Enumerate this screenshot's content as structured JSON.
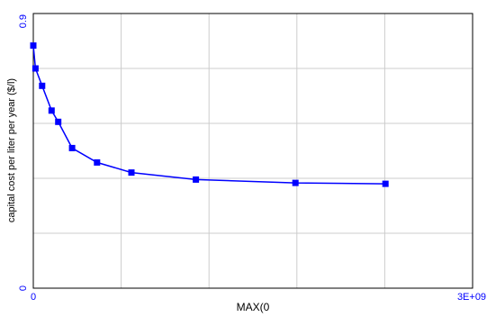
{
  "chart_data": {
    "type": "line",
    "title": "",
    "xlabel": "MAX(0",
    "ylabel": "capital cost per liter per year ($/l)",
    "xlim": [
      0,
      3000000000
    ],
    "ylim": [
      0,
      0.9
    ],
    "x_tick_labels": [
      "0",
      "3E+09"
    ],
    "y_tick_labels": [
      "0",
      "0.9"
    ],
    "grid": true,
    "series": [
      {
        "x": [
          0,
          15000000,
          60000000,
          125000000,
          170000000,
          265000000,
          435000000,
          670000000,
          1110000000,
          1790000000,
          2405000000
        ],
        "y": [
          0.795,
          0.72,
          0.663,
          0.582,
          0.545,
          0.459,
          0.412,
          0.379,
          0.356,
          0.345,
          0.342
        ]
      }
    ],
    "colors": {
      "series": "#0000ff",
      "tick_labels": "#0000ff",
      "axis_title": "#000000",
      "grid": "#cccccc",
      "plot_frame": "#000000"
    },
    "marker": "square"
  }
}
